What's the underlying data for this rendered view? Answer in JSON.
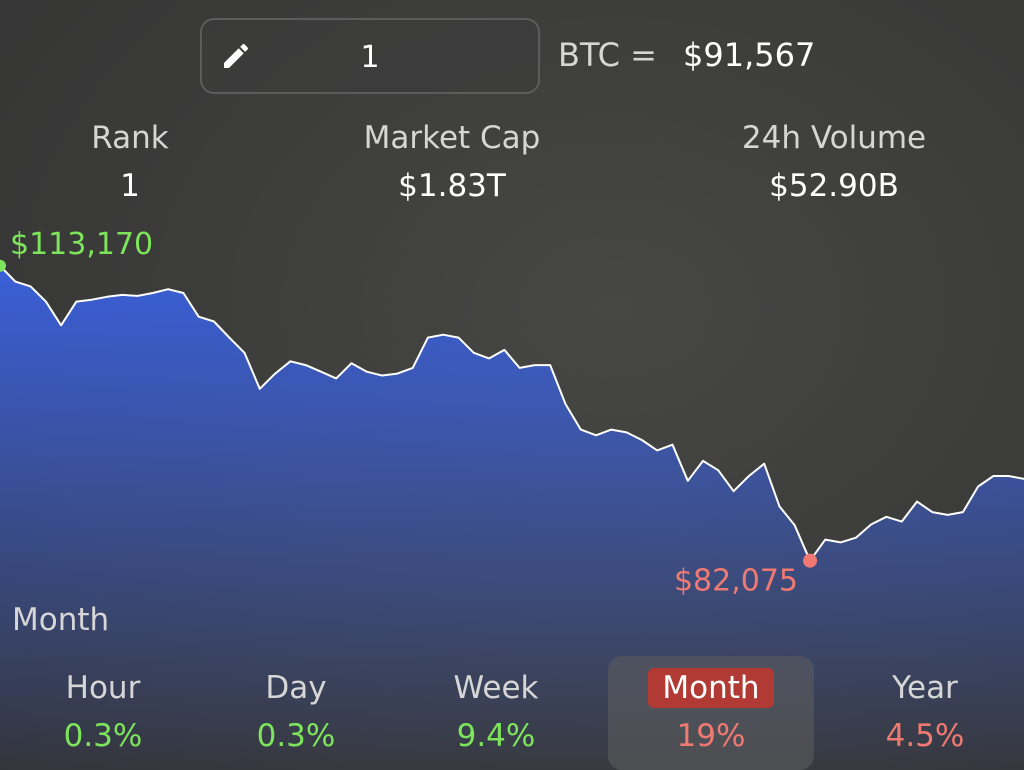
{
  "converter": {
    "amount": "1",
    "symbol": "BTC =",
    "price": "$91,567"
  },
  "stats": [
    {
      "label": "Rank",
      "value": "1"
    },
    {
      "label": "Market Cap",
      "value": "$1.83T"
    },
    {
      "label": "24h Volume",
      "value": "$52.90B"
    }
  ],
  "chart_data": {
    "type": "area",
    "values": [
      113170,
      111500,
      111000,
      109400,
      106900,
      109400,
      109600,
      109900,
      110100,
      110000,
      110300,
      110700,
      110300,
      107800,
      107300,
      105600,
      104000,
      100200,
      101800,
      103100,
      102700,
      102000,
      101300,
      102900,
      102000,
      101600,
      101800,
      102400,
      105600,
      105900,
      105600,
      104000,
      103400,
      104300,
      102400,
      102700,
      102700,
      98600,
      95900,
      95300,
      95900,
      95600,
      94800,
      93700,
      94300,
      90500,
      92600,
      91600,
      89400,
      91000,
      92300,
      87800,
      85800,
      82075,
      84300,
      84000,
      84500,
      85900,
      86700,
      86200,
      88300,
      87200,
      86900,
      87200,
      89900,
      91000,
      91000,
      90700
    ],
    "color": "#3a5fd8",
    "line_color": "#ffffff",
    "ylim": [
      60000,
      118000
    ],
    "high": {
      "value": 113170,
      "label": "$113,170",
      "color": "#7de45c"
    },
    "low": {
      "value": 82075,
      "label": "$82,075",
      "color": "#f07a72"
    },
    "period": "Month"
  },
  "periods": [
    {
      "name": "Hour",
      "change": "0.3%",
      "color": "#7de45c",
      "selected": false
    },
    {
      "name": "Day",
      "change": "0.3%",
      "color": "#7de45c",
      "selected": false
    },
    {
      "name": "Week",
      "change": "9.4%",
      "color": "#7de45c",
      "selected": false
    },
    {
      "name": "Month",
      "change": "19%",
      "color": "#f07a72",
      "selected": true
    },
    {
      "name": "Year",
      "change": "4.5%",
      "color": "#f07a72",
      "selected": false
    }
  ]
}
